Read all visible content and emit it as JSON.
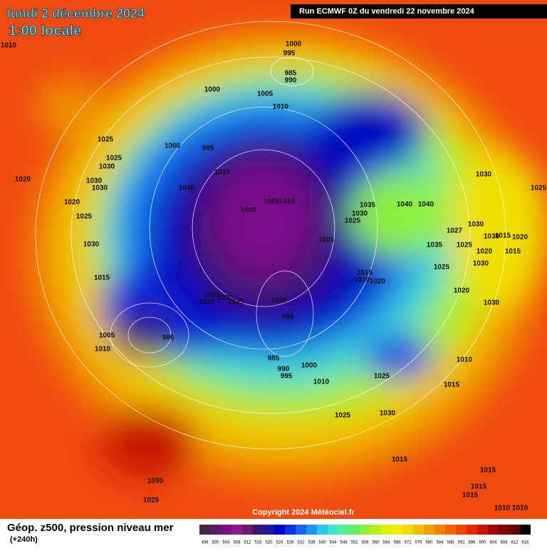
{
  "header": {
    "date": "lundi 2 décembre 2024",
    "time": "1:00 locale",
    "run": "Run ECMWF 0Z du vendredi 22 novembre 2024"
  },
  "copyright": "Copyright 2024 Météociel.fr",
  "footer": {
    "title": "Géop. z500, pression niveau mer",
    "lead": "(+240h)"
  },
  "colorbar": {
    "ticks": [
      496,
      500,
      504,
      508,
      512,
      516,
      520,
      524,
      528,
      532,
      536,
      540,
      544,
      548,
      552,
      556,
      560,
      564,
      568,
      572,
      576,
      580,
      584,
      588,
      592,
      596,
      600,
      604,
      608,
      612,
      616
    ],
    "colors": [
      "#4a2248",
      "#5c1a6b",
      "#7a0f8a",
      "#8f1a8f",
      "#6a1a6a",
      "#3c1470",
      "#1a1aa0",
      "#0000c8",
      "#0a32e6",
      "#1464f0",
      "#1e96f0",
      "#28c8f0",
      "#3ce6c8",
      "#50f096",
      "#64f064",
      "#8cf03c",
      "#b4f01e",
      "#dcf00a",
      "#f0f000",
      "#f0dc00",
      "#f0be00",
      "#f0a000",
      "#f08200",
      "#f06400",
      "#f04600",
      "#e62800",
      "#c81400",
      "#a00a00",
      "#820000",
      "#640000",
      "#000000"
    ]
  },
  "isobars": [
    1010,
    1000,
    995,
    985,
    990,
    1000,
    1005,
    1010,
    1025,
    1000,
    995,
    1025,
    1030,
    1015,
    1020,
    1030,
    1030,
    1040,
    1000,
    1005,
    1010,
    1035,
    1030,
    1025,
    1040,
    1040,
    1030,
    1020,
    1025,
    1030,
    1005,
    1035,
    1025,
    1027,
    1030,
    1030,
    1015,
    1020,
    1020,
    1015,
    1030,
    1025,
    1015,
    1015,
    1010,
    1020,
    1020,
    1025,
    1030,
    1035,
    1015,
    1020,
    995,
    1030,
    1005,
    1010,
    980,
    985,
    990,
    995,
    1000,
    1010,
    1025,
    1015,
    1010,
    1025,
    1030,
    1015,
    1030,
    1025,
    1015,
    1015,
    1015,
    1010,
    1010,
    1025
  ]
}
